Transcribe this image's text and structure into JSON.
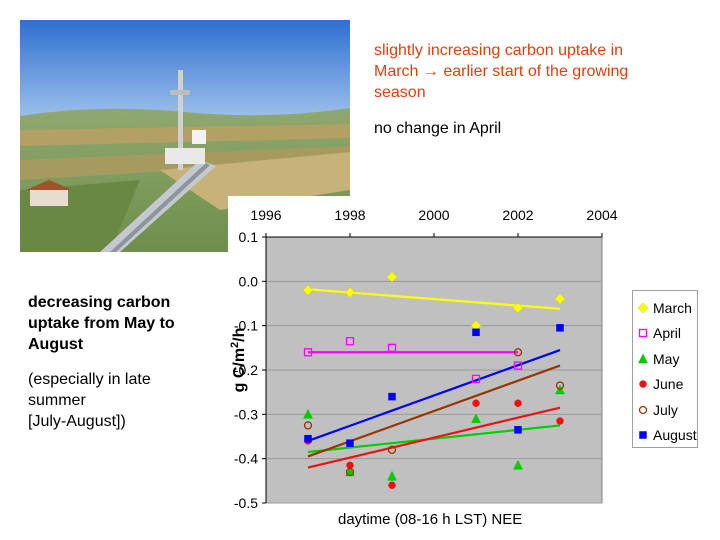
{
  "notes": {
    "march_line1": "slightly increasing carbon uptake in",
    "march_line2": "March → earlier start of the growing",
    "march_line3": "season",
    "april": "no change in April",
    "decrease_line1": "decreasing carbon",
    "decrease_line2": "uptake from May to",
    "decrease_line3": "August",
    "late_line1": "(especially in late",
    "late_line2": "summer",
    "late_line3": "[July-August])"
  },
  "colors": {
    "march_note": "#e0400a",
    "plot_background": "#c0c0c0"
  },
  "chart_data": {
    "type": "scatter",
    "title": "",
    "xlabel": "daytime (08-16 h LST) NEE",
    "ylabel": "g C/m²/h",
    "ylabel_main": "g C/m",
    "ylabel_sup": "2",
    "ylabel_end": "/h",
    "xlim": [
      1996,
      2004
    ],
    "ylim": [
      -0.5,
      0.1
    ],
    "x_ticks": [
      1996,
      1998,
      2000,
      2002,
      2004
    ],
    "y_ticks": [
      -0.5,
      -0.4,
      -0.3,
      -0.2,
      -0.1,
      0.0,
      0.1
    ],
    "x_tick_labels": [
      "1996",
      "1998",
      "2000",
      "2002",
      "2004"
    ],
    "y_tick_labels": [
      "-0.5",
      "-0.4",
      "-0.3",
      "-0.2",
      "-0.1",
      "0.0",
      "0.1"
    ],
    "x_axis_position": "top",
    "grid": "horizontal",
    "legend_position": "right",
    "series": [
      {
        "name": "March",
        "marker": "diamond",
        "color": "#ffff00",
        "fill": true,
        "x": [
          1997,
          1998,
          1999,
          2001,
          2002,
          2003
        ],
        "y": [
          -0.02,
          -0.025,
          0.01,
          -0.1,
          -0.06,
          -0.04
        ],
        "trend": [
          [
            1997,
            -0.018
          ],
          [
            2003,
            -0.062
          ]
        ]
      },
      {
        "name": "April",
        "marker": "square",
        "color": "#ff00ff",
        "fill": false,
        "x": [
          1997,
          1998,
          1999,
          2001,
          2002
        ],
        "y": [
          -0.16,
          -0.135,
          -0.15,
          -0.22,
          -0.19
        ],
        "trend": [
          [
            1997,
            -0.16
          ],
          [
            2002,
            -0.16
          ]
        ]
      },
      {
        "name": "May",
        "marker": "triangle",
        "color": "#00cc00",
        "fill": true,
        "x": [
          1997,
          1998,
          1999,
          2001,
          2002,
          2003
        ],
        "y": [
          -0.3,
          -0.43,
          -0.44,
          -0.31,
          -0.415,
          -0.245
        ],
        "trend": [
          [
            1997,
            -0.385
          ],
          [
            2003,
            -0.325
          ]
        ]
      },
      {
        "name": "June",
        "marker": "circle",
        "color": "#ee1111",
        "fill": true,
        "x": [
          1997,
          1998,
          1999,
          2001,
          2002,
          2003
        ],
        "y": [
          -0.36,
          -0.415,
          -0.46,
          -0.275,
          -0.275,
          -0.315
        ],
        "trend": [
          [
            1997,
            -0.42
          ],
          [
            2003,
            -0.285
          ]
        ]
      },
      {
        "name": "July",
        "marker": "circle",
        "color": "#993300",
        "fill": false,
        "x": [
          1997,
          1998,
          1999,
          2002,
          2003
        ],
        "y": [
          -0.325,
          -0.43,
          -0.38,
          -0.16,
          -0.235
        ],
        "trend": [
          [
            1997,
            -0.395
          ],
          [
            2003,
            -0.19
          ]
        ]
      },
      {
        "name": "August",
        "marker": "square",
        "color": "#0000ff",
        "fill": true,
        "x": [
          1997,
          1998,
          1999,
          2001,
          2002,
          2003
        ],
        "y": [
          -0.355,
          -0.365,
          -0.26,
          -0.115,
          -0.335,
          -0.105
        ],
        "trend": [
          [
            1997,
            -0.36
          ],
          [
            2003,
            -0.155
          ]
        ]
      }
    ]
  }
}
